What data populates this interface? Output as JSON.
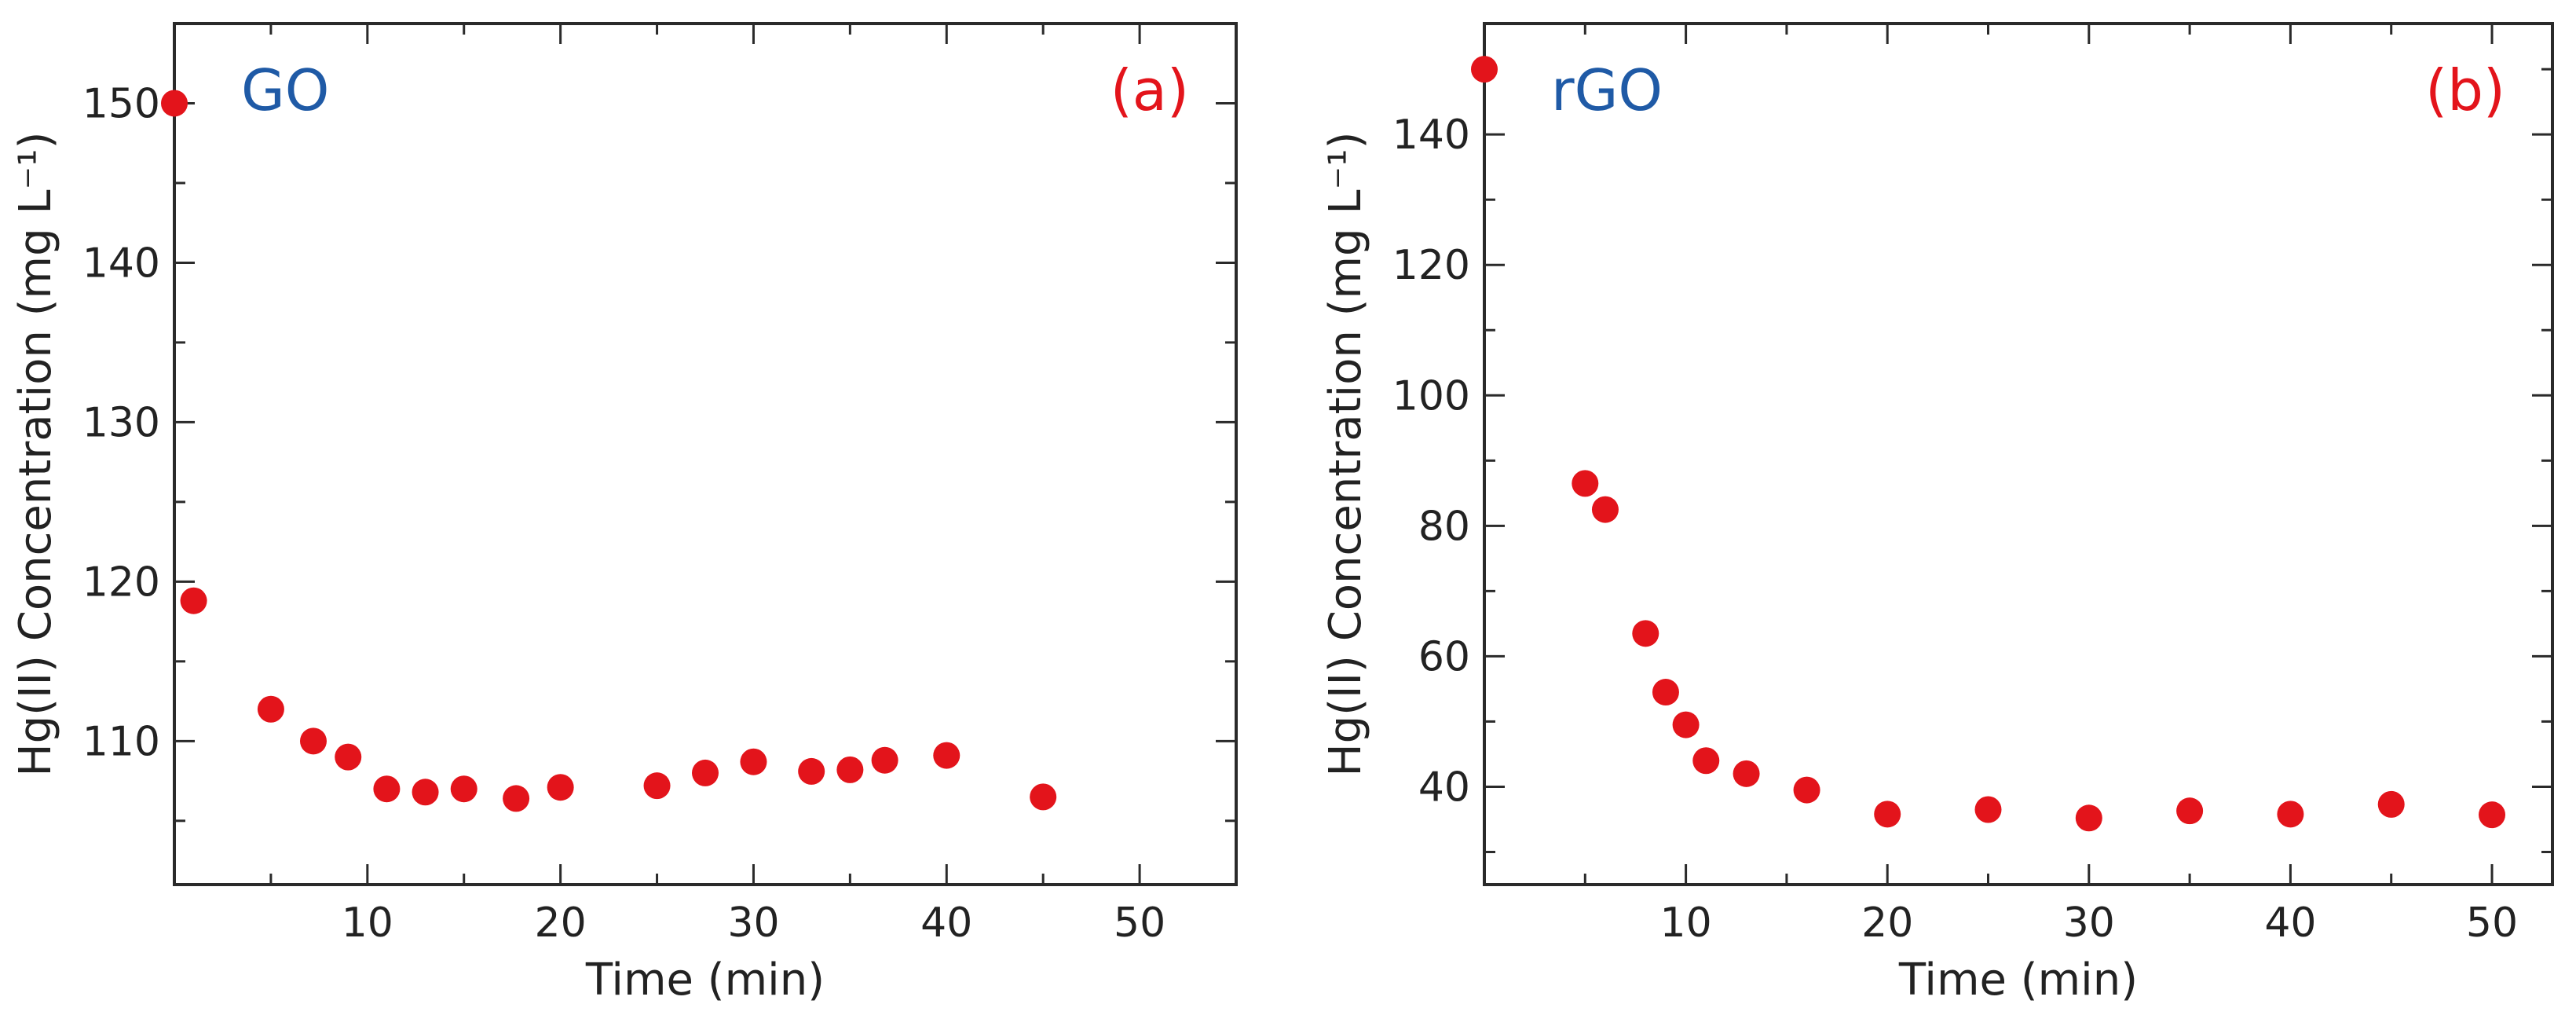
{
  "colors": {
    "point": "#e3141b",
    "sample_label": "#1f5aa6",
    "panel_label": "#e3141b",
    "axis": "#2a2a2a"
  },
  "chart_data": [
    {
      "type": "scatter",
      "sample_label": "GO",
      "panel_label": "(a)",
      "xlabel": "Time (min)",
      "ylabel": "Hg(II) Concentration (mg L⁻¹)",
      "xlim": [
        0,
        55
      ],
      "ylim": [
        101,
        155
      ],
      "xticks": [
        10,
        20,
        30,
        40,
        50
      ],
      "yticks": [
        110,
        120,
        130,
        140,
        150
      ],
      "x": [
        0,
        1,
        5,
        7.2,
        9,
        11,
        13,
        15,
        17.7,
        20,
        25,
        27.5,
        30,
        33,
        35,
        36.8,
        40,
        45
      ],
      "y": [
        150,
        118.8,
        112,
        110,
        109,
        107,
        106.8,
        107,
        106.4,
        107.1,
        107.2,
        108,
        108.7,
        108.1,
        108.2,
        108.8,
        109.1,
        106.5
      ]
    },
    {
      "type": "scatter",
      "sample_label": "rGO",
      "panel_label": "(b)",
      "xlabel": "Time (min)",
      "ylabel": "Hg(II) Concentration (mg L⁻¹)",
      "xlim": [
        0,
        53
      ],
      "ylim": [
        25,
        157
      ],
      "xticks": [
        10,
        20,
        30,
        40,
        50
      ],
      "yticks": [
        40,
        60,
        80,
        100,
        120,
        140
      ],
      "x": [
        0,
        5,
        6,
        8,
        9,
        10,
        11,
        13,
        16,
        20,
        25,
        30,
        35,
        40,
        45,
        50
      ],
      "y": [
        150,
        86.5,
        82.5,
        63.5,
        54.5,
        49.5,
        44,
        42,
        39.5,
        35.8,
        36.5,
        35.2,
        36.3,
        35.8,
        37.3,
        35.7
      ]
    }
  ]
}
